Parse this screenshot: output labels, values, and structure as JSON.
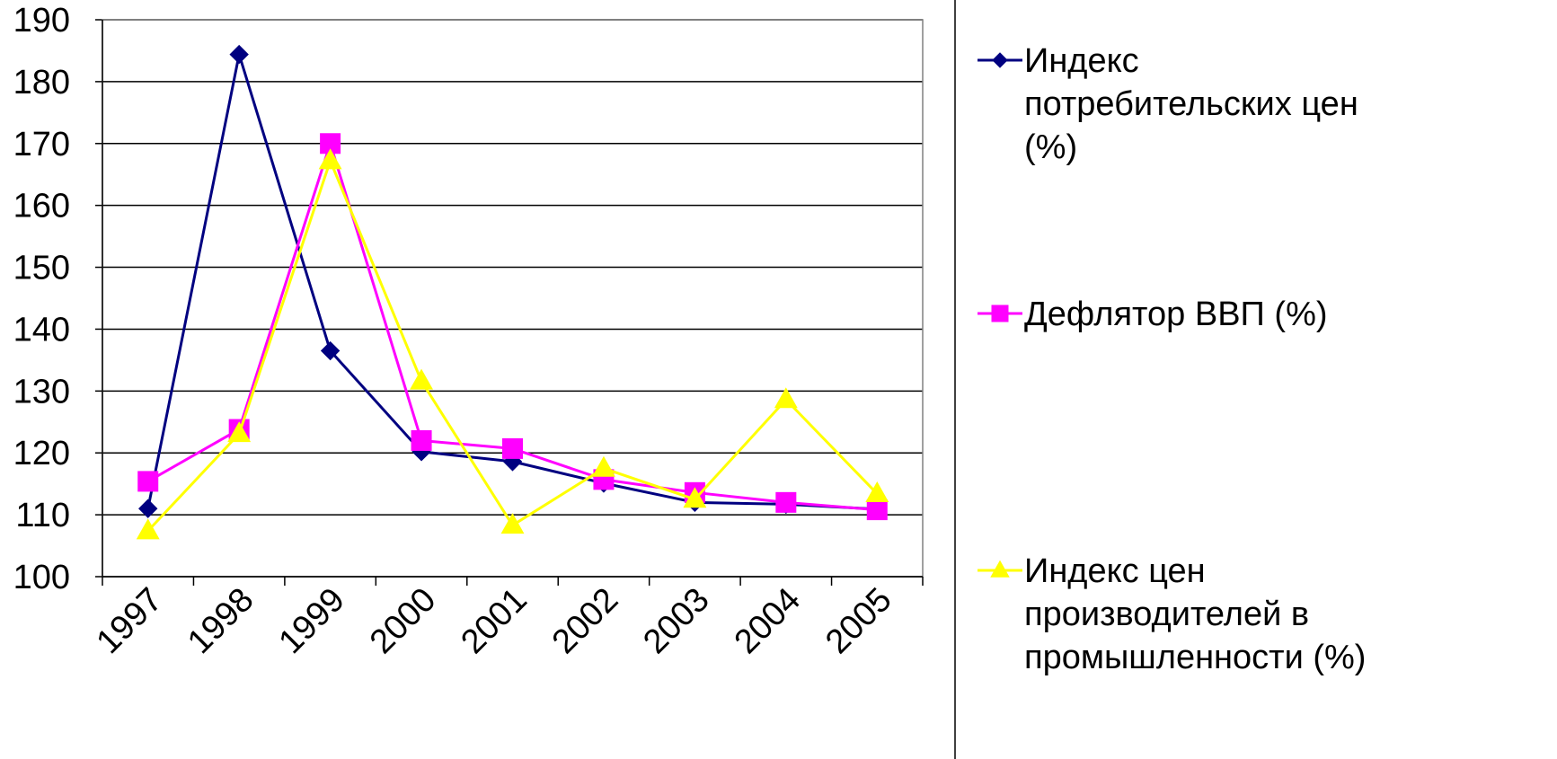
{
  "chart_data": {
    "type": "line",
    "categories": [
      "1997",
      "1998",
      "1999",
      "2000",
      "2001",
      "2002",
      "2003",
      "2004",
      "2005"
    ],
    "ylim": [
      100,
      190
    ],
    "yticks": [
      "100",
      "110",
      "120",
      "130",
      "140",
      "150",
      "160",
      "170",
      "180",
      "190"
    ],
    "grid": true,
    "legend_position": "right",
    "series": [
      {
        "name": "Индекс потребительских цен (%)",
        "legend_lines": [
          "Индекс",
          "потребительских цен",
          "(%)"
        ],
        "color": "#000080",
        "marker": "diamond",
        "values": [
          111.0,
          184.4,
          136.5,
          120.2,
          118.6,
          115.1,
          112.0,
          111.7,
          110.9
        ]
      },
      {
        "name": "Дефлятор ВВП (%)",
        "legend_lines": [
          "Дефлятор ВВП (%)"
        ],
        "color": "#FF00FF",
        "marker": "square",
        "values": [
          115.4,
          123.8,
          170.0,
          122.0,
          120.7,
          115.7,
          113.6,
          112.0,
          110.8
        ]
      },
      {
        "name": "Индекс цен производителей в промышленности (%)",
        "legend_lines": [
          "Индекс цен",
          "производителей в",
          "промышленности (%)"
        ],
        "color": "#FFFF00",
        "marker": "triangle",
        "values": [
          107.4,
          123.1,
          167.2,
          131.6,
          108.3,
          117.5,
          112.5,
          128.6,
          113.4
        ]
      }
    ]
  }
}
